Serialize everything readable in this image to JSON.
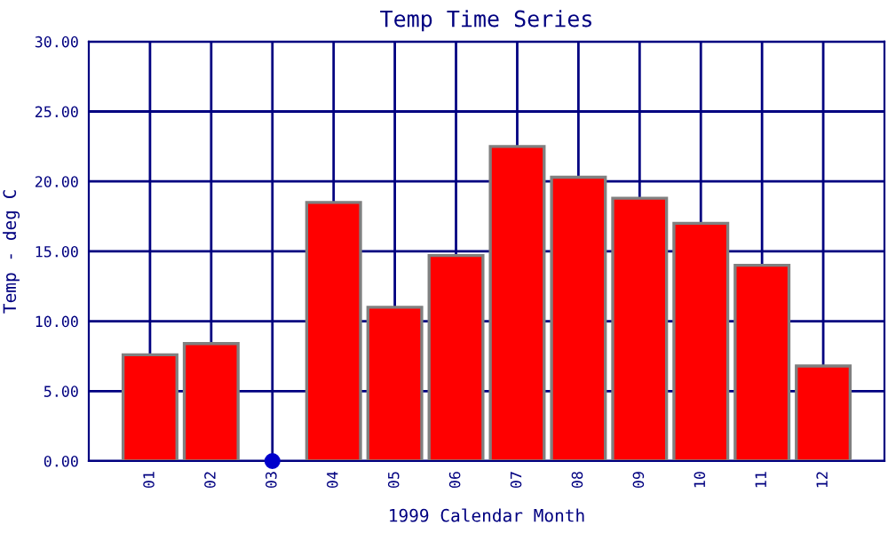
{
  "chart_data": {
    "type": "bar",
    "title": "Temp Time Series",
    "xlabel": "1999 Calendar Month",
    "ylabel": "Temp - deg C",
    "categories": [
      "01",
      "02",
      "03",
      "04",
      "05",
      "06",
      "07",
      "08",
      "09",
      "10",
      "11",
      "12"
    ],
    "series": [
      {
        "color": "#ff0000",
        "values": [
          7.6,
          8.4,
          null,
          18.5,
          11.0,
          14.7,
          22.5,
          20.3,
          18.8,
          17.0,
          14.0,
          6.8
        ]
      },
      {
        "type": "scatter",
        "color": "#0000cc",
        "x": [
          "03"
        ],
        "values": [
          0
        ],
        "marker": "circle"
      }
    ],
    "ylim": [
      0,
      30
    ],
    "yticks": [
      {
        "value": 0,
        "label": "0.00"
      },
      {
        "value": 5,
        "label": "5.00"
      },
      {
        "value": 10,
        "label": "10.00"
      },
      {
        "value": 15,
        "label": "15.00"
      },
      {
        "value": 20,
        "label": "20.00"
      },
      {
        "value": 25,
        "label": "25.00"
      },
      {
        "value": 30,
        "label": "30.00"
      }
    ],
    "grid": true,
    "legend": false
  }
}
